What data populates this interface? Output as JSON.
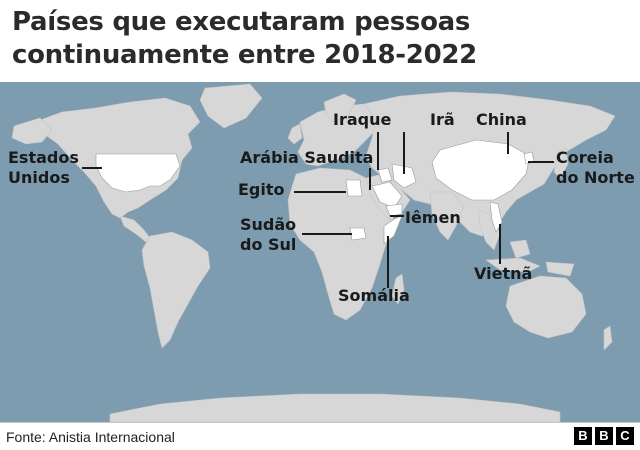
{
  "title": "Países que executaram pessoas continuamente entre 2018-2022",
  "countries": {
    "estados_unidos": "Estados Unidos",
    "egito": "Egito",
    "arabia_saudita": "Arábia Saudita",
    "iraque": "Iraque",
    "ira": "Irã",
    "china": "China",
    "coreia_do_norte": "Coreia do Norte",
    "sudao_do_sul": "Sudão do Sul",
    "iemen": "Iêmen",
    "somalia": "Somália",
    "vietna": "Vietnã"
  },
  "colors": {
    "ocean": "#7d9cb0",
    "land": "#d7d7d7",
    "highlighted": "#ffffff",
    "leader_line": "#1a1a1a"
  },
  "footer": {
    "source": "Fonte: Anistia Internacional",
    "logo_letters": [
      "B",
      "B",
      "C"
    ]
  }
}
